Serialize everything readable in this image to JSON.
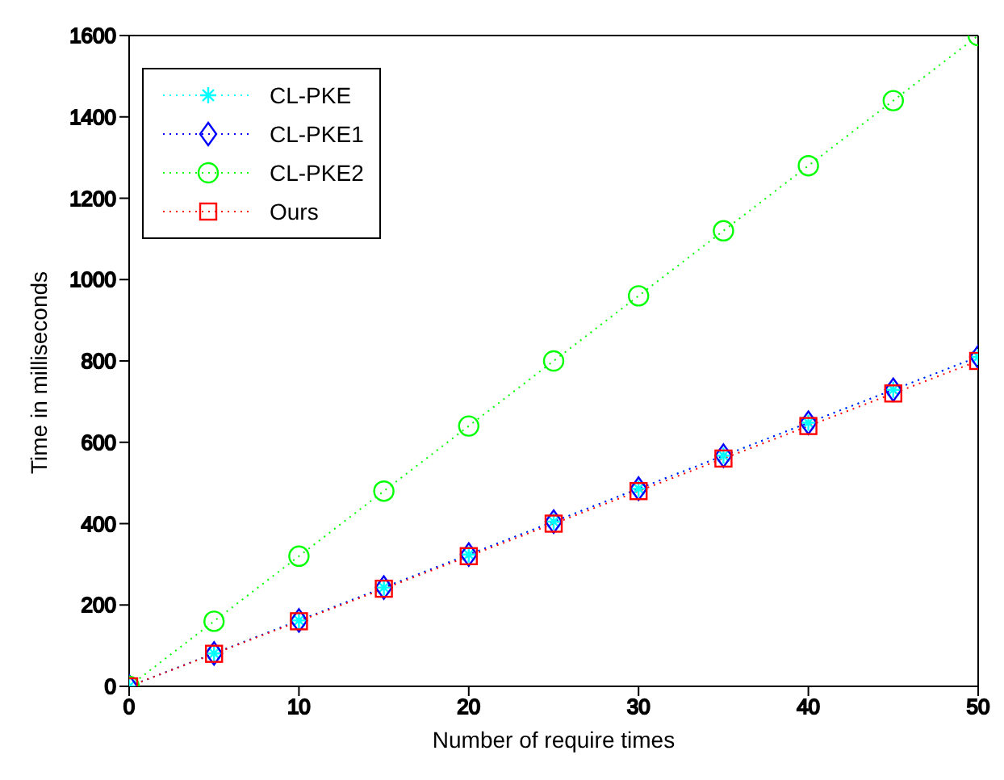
{
  "chart_data": {
    "type": "line",
    "xlabel": "Number of require times",
    "ylabel": "Time in milliseconds",
    "x": [
      0,
      5,
      10,
      15,
      20,
      25,
      30,
      35,
      40,
      45,
      50
    ],
    "xlim": [
      0,
      50
    ],
    "xticks": [
      0,
      10,
      20,
      30,
      40,
      50
    ],
    "ylim": [
      0,
      1600
    ],
    "yticks": [
      0,
      200,
      400,
      600,
      800,
      1000,
      1200,
      1400,
      1600
    ],
    "grid": false,
    "legend": "top left",
    "line_style": "dotted",
    "series": [
      {
        "name": "CL-PKE",
        "color": "#00ffff",
        "marker": "cross",
        "values": [
          0,
          81,
          162,
          243,
          324,
          405,
          486,
          567,
          648,
          729,
          810
        ]
      },
      {
        "name": "CL-PKE1",
        "color": "#0000ff",
        "marker": "diamond",
        "values": [
          0,
          81,
          162,
          243,
          324,
          405,
          486,
          567,
          648,
          729,
          810
        ]
      },
      {
        "name": "CL-PKE2",
        "color": "#00ff00",
        "marker": "circle",
        "values": [
          0,
          160,
          320,
          480,
          640,
          800,
          960,
          1120,
          1280,
          1440,
          1600
        ]
      },
      {
        "name": "Ours",
        "color": "#ff0000",
        "marker": "square",
        "values": [
          0,
          80,
          160,
          240,
          320,
          400,
          480,
          560,
          640,
          720,
          800
        ]
      }
    ]
  }
}
